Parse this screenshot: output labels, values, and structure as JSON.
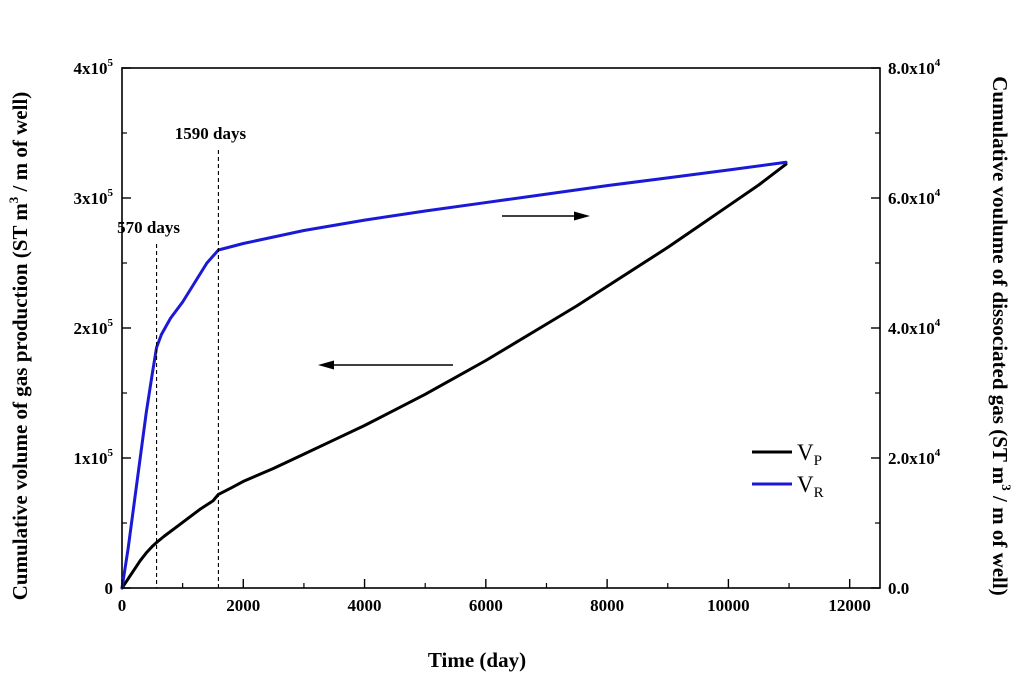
{
  "chart_data": {
    "type": "line",
    "xlabel": "Time (day)",
    "ylabel_left": {
      "before": "Cumulative volume of gas production (ST m",
      "sup": "3",
      "after": " / m of well)"
    },
    "ylabel_right": {
      "before": "Cumulative voulume of dissociated gas (ST m",
      "sup": "3",
      "after": " / m of well)"
    },
    "xlim": [
      0,
      12500
    ],
    "ylim_left": [
      0,
      400000
    ],
    "ylim_right": [
      0,
      80000
    ],
    "x_ticks": [
      {
        "value": 0,
        "label": "0"
      },
      {
        "value": 2000,
        "label": "2000"
      },
      {
        "value": 4000,
        "label": "4000"
      },
      {
        "value": 6000,
        "label": "6000"
      },
      {
        "value": 8000,
        "label": "8000"
      },
      {
        "value": 10000,
        "label": "10000"
      },
      {
        "value": 12000,
        "label": "12000"
      }
    ],
    "y_left_ticks": [
      {
        "value": 0,
        "mant": "0",
        "exp": ""
      },
      {
        "value": 100000,
        "mant": "1x10",
        "exp": "5"
      },
      {
        "value": 200000,
        "mant": "2x10",
        "exp": "5"
      },
      {
        "value": 300000,
        "mant": "3x10",
        "exp": "5"
      },
      {
        "value": 400000,
        "mant": "4x10",
        "exp": "5"
      }
    ],
    "y_right_ticks": [
      {
        "value": 0,
        "mant": "0.0",
        "exp": ""
      },
      {
        "value": 20000,
        "mant": "2.0x10",
        "exp": "4"
      },
      {
        "value": 40000,
        "mant": "4.0x10",
        "exp": "4"
      },
      {
        "value": 60000,
        "mant": "6.0x10",
        "exp": "4"
      },
      {
        "value": 80000,
        "mant": "8.0x10",
        "exp": "4"
      }
    ],
    "series": [
      {
        "name": "VP",
        "legend_main": "V",
        "legend_sub": "P",
        "axis": "left",
        "color": "#000000",
        "x": [
          0,
          100,
          200,
          300,
          400,
          500,
          570,
          700,
          900,
          1100,
          1300,
          1500,
          1590,
          1800,
          2000,
          2500,
          3000,
          3500,
          4000,
          4500,
          5000,
          5500,
          6000,
          6500,
          7000,
          7500,
          8000,
          8500,
          9000,
          9500,
          10000,
          10500,
          10950
        ],
        "y": [
          0,
          7000,
          14000,
          21000,
          27000,
          32000,
          35000,
          40000,
          47000,
          54000,
          61000,
          67000,
          72000,
          77000,
          82000,
          92000,
          103000,
          114000,
          125000,
          137000,
          149000,
          162000,
          175000,
          189000,
          203000,
          217000,
          232000,
          247000,
          262000,
          278000,
          294000,
          310000,
          326000
        ]
      },
      {
        "name": "VR",
        "legend_main": "V",
        "legend_sub": "R",
        "axis": "right",
        "color": "#1a1ad6",
        "x": [
          0,
          100,
          200,
          300,
          400,
          500,
          570,
          650,
          800,
          1000,
          1200,
          1400,
          1590,
          2000,
          3000,
          4000,
          5000,
          6000,
          7000,
          8000,
          9000,
          10000,
          10950
        ],
        "y": [
          0,
          6000,
          13000,
          20000,
          27000,
          33000,
          37000,
          39000,
          41500,
          44000,
          47000,
          50000,
          52000,
          53000,
          55000,
          56600,
          58000,
          59300,
          60600,
          61900,
          63100,
          64300,
          65500
        ]
      }
    ],
    "vlines": [
      {
        "x": 570,
        "label": "570 days"
      },
      {
        "x": 1590,
        "label": "1590 days"
      }
    ],
    "arrows": [
      {
        "direction": "left",
        "points_to": "left axis"
      },
      {
        "direction": "right",
        "points_to": "right axis"
      }
    ],
    "legend": {
      "position": "lower-right"
    },
    "grid": false
  }
}
